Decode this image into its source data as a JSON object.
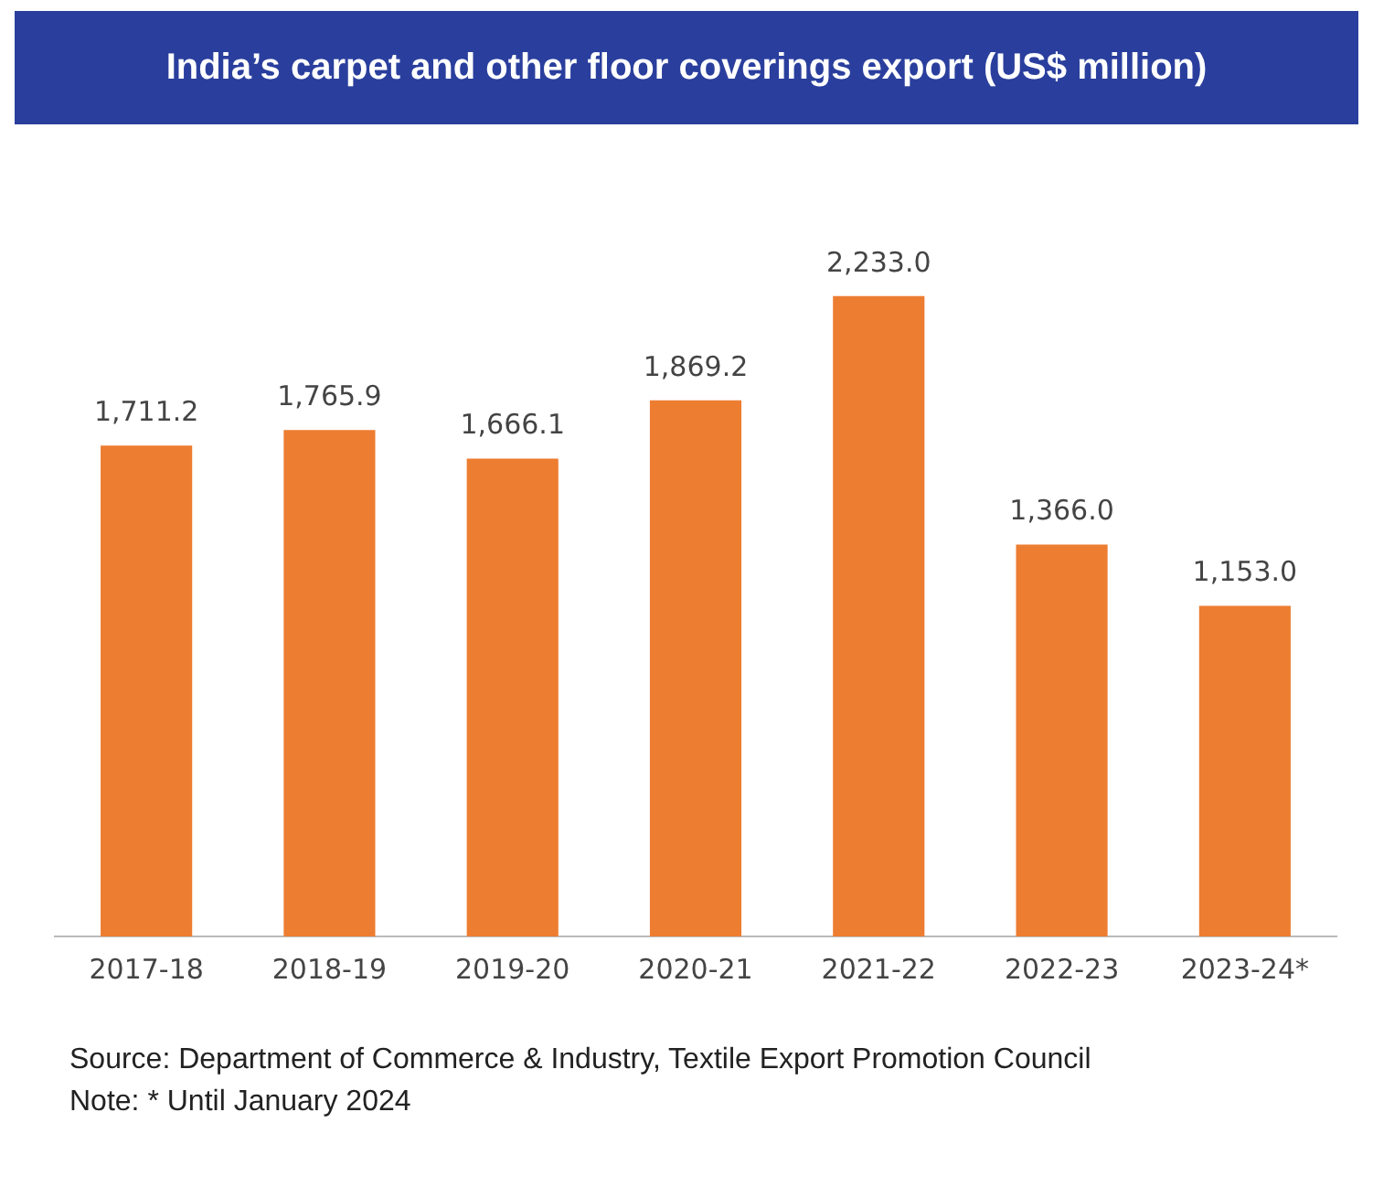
{
  "chart_data": {
    "type": "bar",
    "title": "India’s carpet and other floor coverings export (US$ million)",
    "categories": [
      "2017-18",
      "2018-19",
      "2019-20",
      "2020-21",
      "2021-22",
      "2022-23",
      "2023-24*"
    ],
    "values": [
      1711.2,
      1765.9,
      1666.1,
      1869.2,
      2233.0,
      1366.0,
      1153.0
    ],
    "value_labels": [
      "1,711.2",
      "1,765.9",
      "1,666.1",
      "1,869.2",
      "2,233.0",
      "1,366.0",
      "1,153.0"
    ],
    "color": "#ed7d31",
    "grid": false,
    "legend": false,
    "annotations": [
      "Source: Department of Commerce & Industry, Textile Export Promotion Council",
      "Note: * Until January 2024"
    ]
  }
}
